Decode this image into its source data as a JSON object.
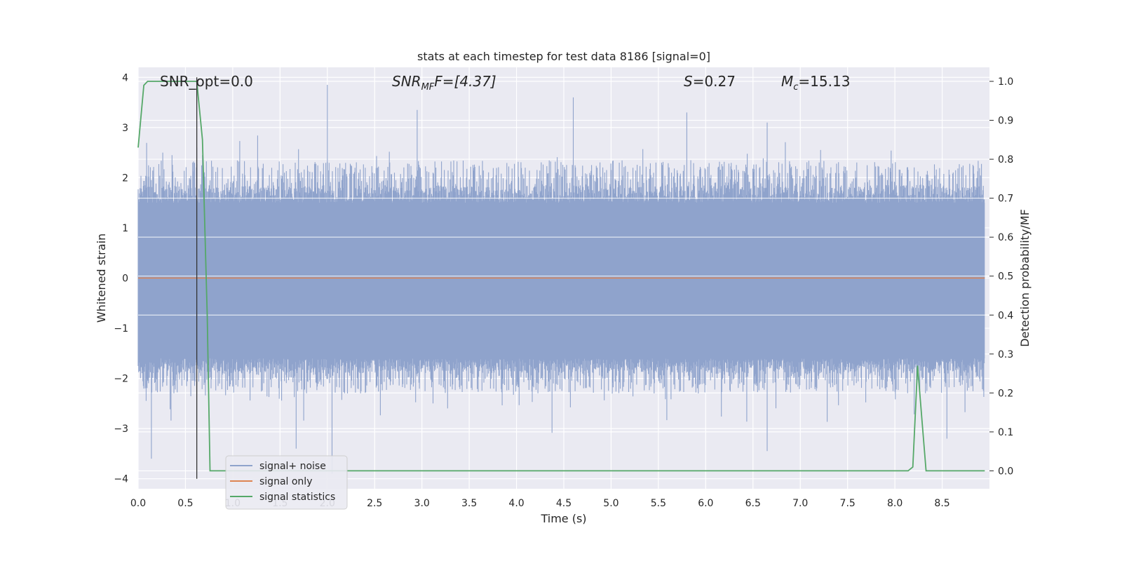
{
  "chart_data": {
    "type": "line",
    "title": "stats at each timestep for test data 8186 [signal=0]",
    "xlabel": "Time (s)",
    "ylabel": "Whitened strain",
    "y2label": "Detection probability/MF",
    "xlim": [
      0,
      9.0
    ],
    "ylim": [
      -4.2,
      4.2
    ],
    "y2lim": [
      -0.046,
      1.036
    ],
    "xticks": [
      "0.0",
      "0.5",
      "1.0",
      "1.5",
      "2.0",
      "2.5",
      "3.0",
      "3.5",
      "4.0",
      "4.5",
      "5.0",
      "5.5",
      "6.0",
      "6.5",
      "7.0",
      "7.5",
      "8.0",
      "8.5"
    ],
    "yticks": [
      "−4",
      "−3",
      "−2",
      "−1",
      "0",
      "1",
      "2",
      "3",
      "4"
    ],
    "y2ticks": [
      "0.0",
      "0.1",
      "0.2",
      "0.3",
      "0.4",
      "0.5",
      "0.6",
      "0.7",
      "0.8",
      "0.9",
      "1.0"
    ],
    "grid": true,
    "legend_position": "lower-left",
    "annotations": {
      "snr_opt": "SNR_opt=0.0",
      "snr_mf_base": "SNR",
      "snr_mf_sub": "MF",
      "snr_mf_value": "F=[4.37]",
      "s_label": "S",
      "s_value": "=0.27",
      "mc_base": "M",
      "mc_sub": "c",
      "mc_value": "=15.13"
    },
    "marker_line_x": 0.62,
    "series": [
      {
        "name": "signal+ noise",
        "color": "#8fa3cc",
        "envelope": {
          "description_free": true,
          "typical_upper": 1.5,
          "typical_lower": -1.6,
          "peak_max": [
            [
              0.13,
              1.1
            ],
            [
              0.26,
              2.5
            ],
            [
              0.62,
              2.6
            ],
            [
              0.68,
              2.45
            ],
            [
              2.0,
              3.85
            ],
            [
              2.05,
              -3.9
            ],
            [
              1.67,
              -3.4
            ],
            [
              2.95,
              3.35
            ],
            [
              4.6,
              3.6
            ],
            [
              5.8,
              3.3
            ],
            [
              6.65,
              3.1
            ],
            [
              6.65,
              -3.45
            ],
            [
              8.55,
              -3.2
            ],
            [
              0.14,
              -3.6
            ]
          ]
        },
        "seed": 8186
      },
      {
        "name": "signal only",
        "color": "#dd8452",
        "values_constant": 0.0
      },
      {
        "name": "signal statistics",
        "color": "#55a868",
        "axis": "right",
        "x": [
          0.0,
          0.06,
          0.1,
          0.2,
          0.5,
          0.62,
          0.68,
          0.73,
          0.76,
          0.8,
          8.0,
          8.14,
          8.19,
          8.24,
          8.29,
          8.33,
          8.4,
          8.95
        ],
        "y": [
          0.83,
          0.99,
          1.0,
          1.0,
          1.0,
          1.0,
          0.85,
          0.4,
          0.0,
          0.0,
          0.0,
          0.0,
          0.01,
          0.27,
          0.12,
          0.0,
          0.0,
          0.0
        ]
      }
    ]
  },
  "colors": {
    "plot_bg": "#eaeaf2",
    "grid": "#ffffff",
    "noise": "#8fa3cc",
    "signal": "#dd8452",
    "stats": "#55a868",
    "marker": "#333333"
  }
}
